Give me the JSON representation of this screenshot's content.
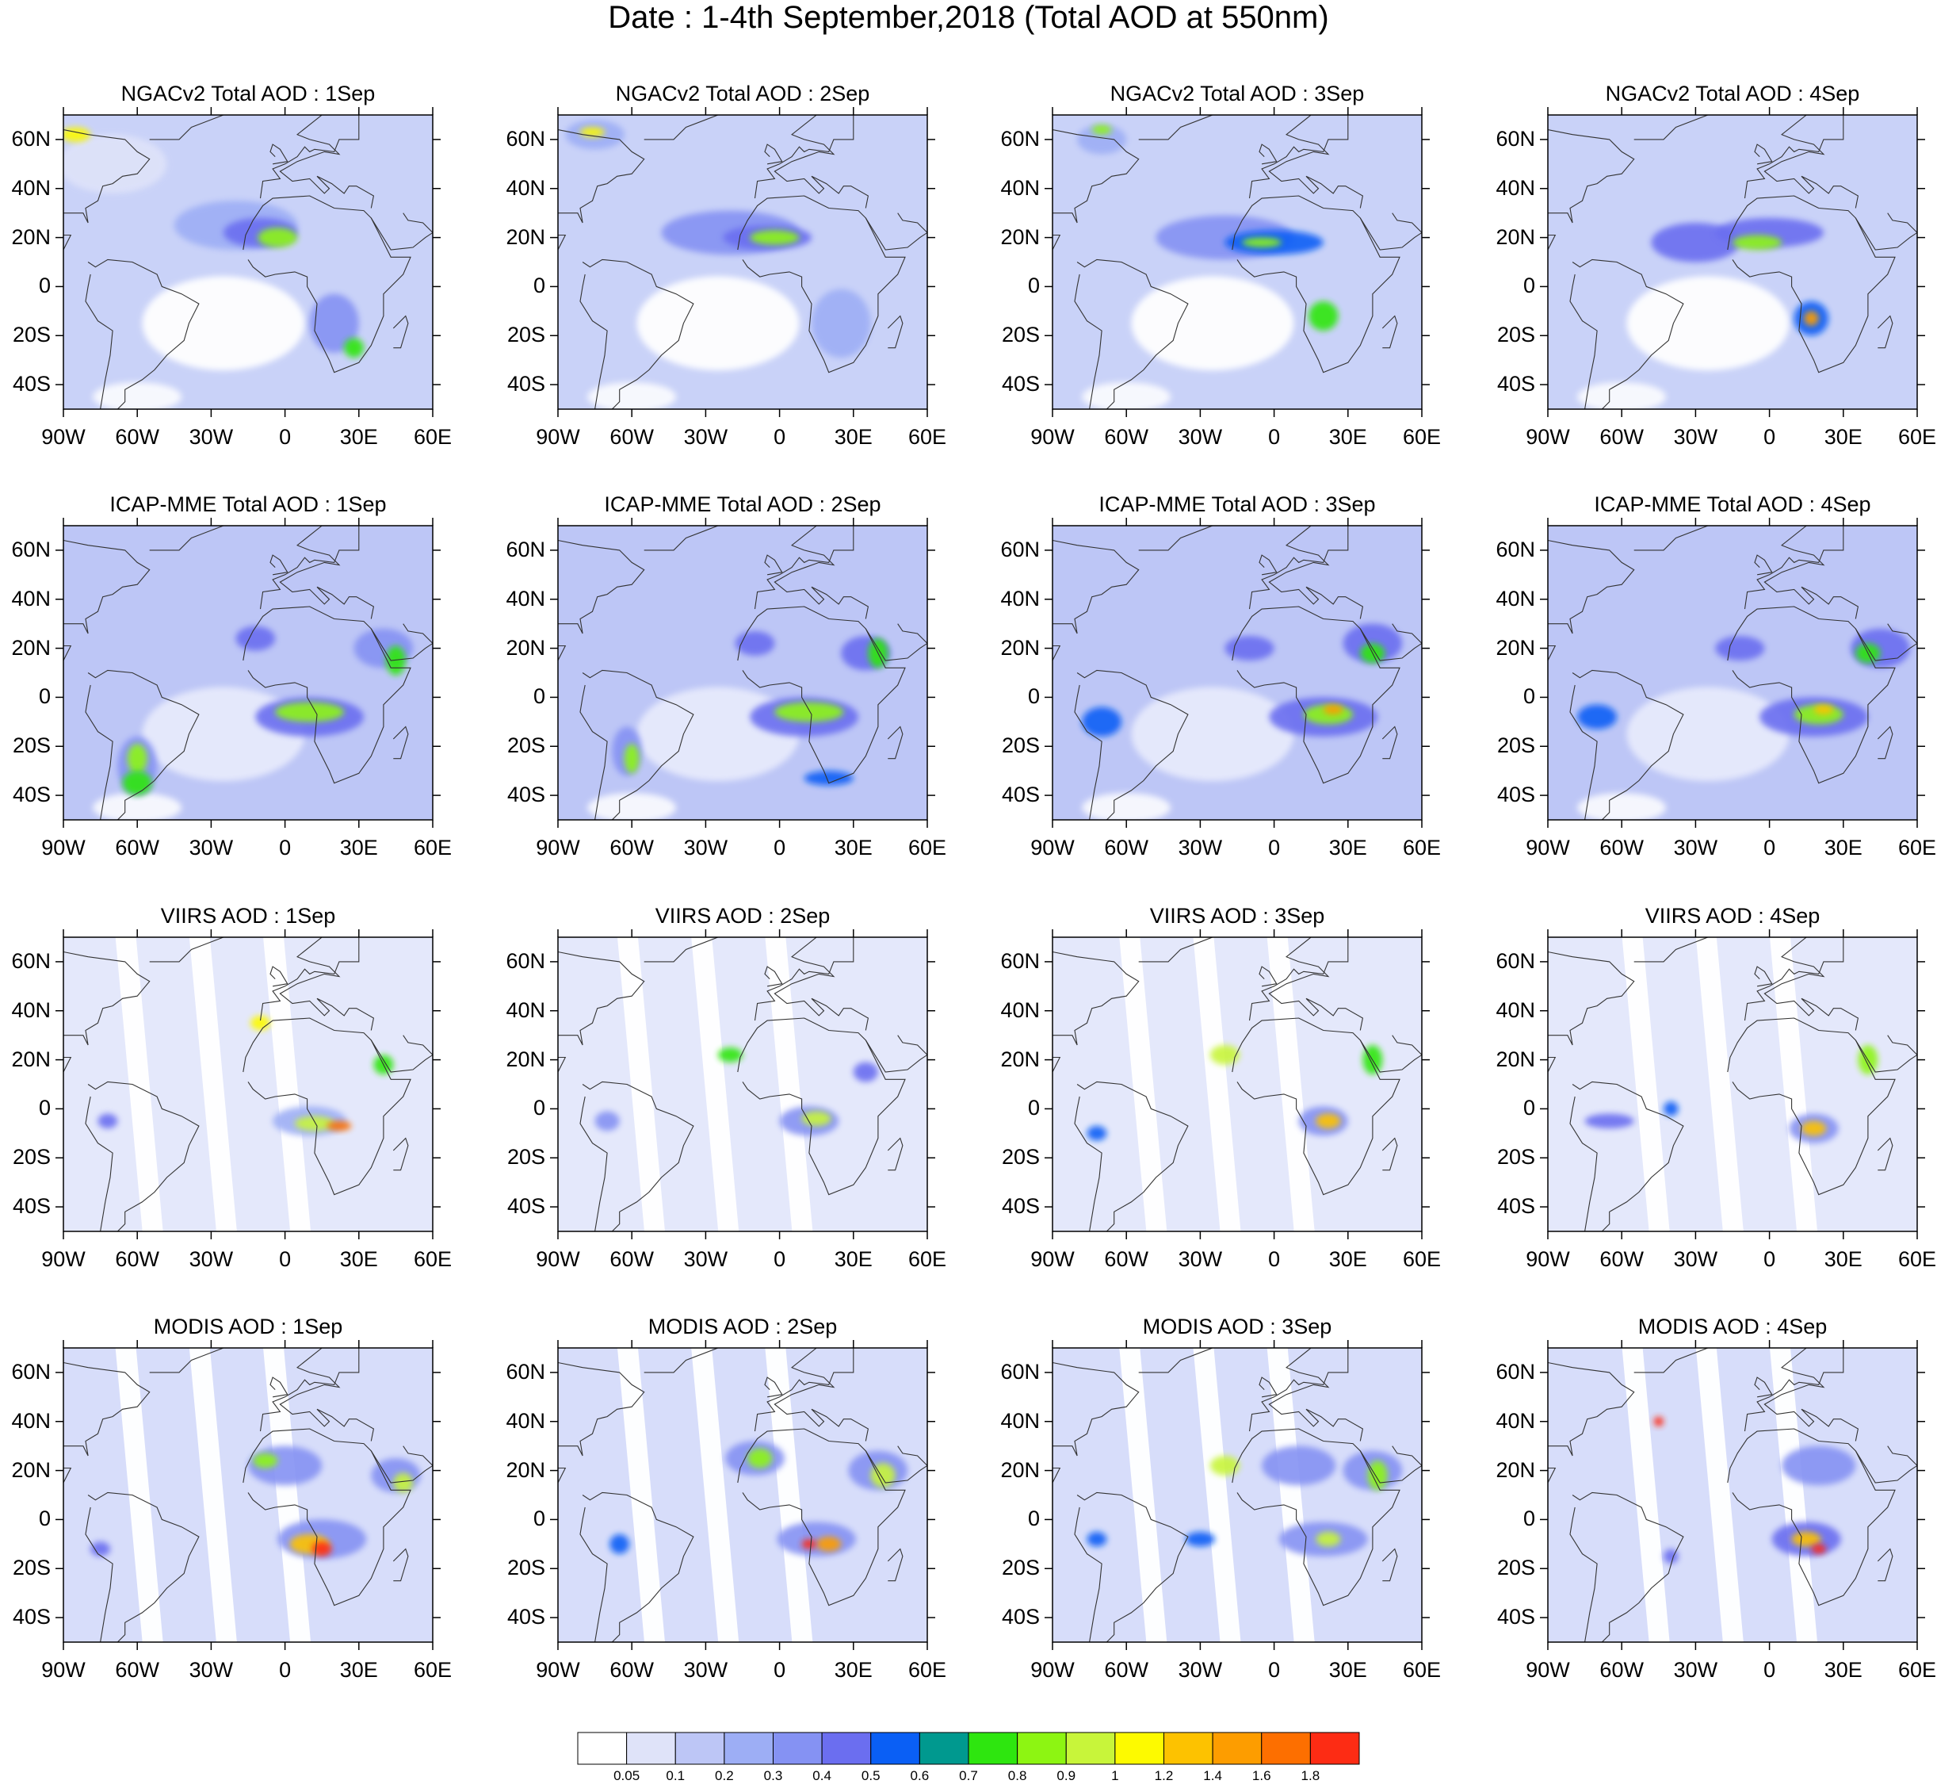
{
  "figure_title": "Date : 1-4th September,2018 (Total AOD at 550nm)",
  "lat_ticks": [
    "60N",
    "40N",
    "20N",
    "0",
    "20S",
    "40S"
  ],
  "lon_ticks": [
    "90W",
    "60W",
    "30W",
    "0",
    "30E",
    "60E"
  ],
  "colorbar": {
    "labels": [
      "0.05",
      "0.1",
      "0.2",
      "0.3",
      "0.4",
      "0.5",
      "0.6",
      "0.7",
      "0.8",
      "0.9",
      "1",
      "1.2",
      "1.4",
      "1.6",
      "1.8"
    ],
    "colors": [
      "#ffffff",
      "#dfe3f9",
      "#bdc6f6",
      "#9daef5",
      "#8592f3",
      "#6b6ef0",
      "#0a5ff5",
      "#00998f",
      "#2ee60f",
      "#8df512",
      "#c8f53a",
      "#fdfa00",
      "#fdc200",
      "#fd9d00",
      "#fd6f00",
      "#fd2c14"
    ]
  },
  "panel_titles": [
    [
      "NGACv2 Total AOD : 1Sep",
      "NGACv2 Total AOD : 2Sep",
      "NGACv2 Total AOD : 3Sep",
      "NGACv2 Total AOD : 4Sep"
    ],
    [
      "ICAP-MME Total AOD : 1Sep",
      "ICAP-MME Total AOD : 2Sep",
      "ICAP-MME Total AOD : 3Sep",
      "ICAP-MME Total AOD : 4Sep"
    ],
    [
      "VIIRS AOD : 1Sep",
      "VIIRS AOD : 2Sep",
      "VIIRS AOD : 3Sep",
      "VIIRS AOD : 4Sep"
    ],
    [
      "MODIS AOD : 1Sep",
      "MODIS AOD : 2Sep",
      "MODIS AOD : 3Sep",
      "MODIS AOD : 4Sep"
    ]
  ]
}
